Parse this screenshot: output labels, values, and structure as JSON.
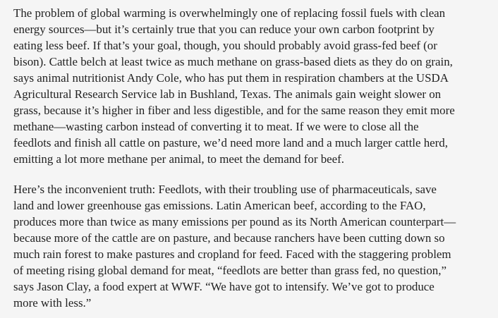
{
  "article": {
    "paragraphs": [
      {
        "lines": [
          "The problem of global warming is overwhelmingly one of replacing fossil fuels with clean",
          "energy sources—but it’s certainly true that you can reduce your own carbon footprint by",
          "eating less beef. If that’s your goal, though, you should probably avoid grass-fed beef (or",
          "bison). Cattle belch at least twice as much methane on grass-based diets as they do on grain,",
          "says animal nutritionist Andy Cole, who has put them in respiration chambers at the USDA",
          "Agricultural Research Service lab in Bushland, Texas. The animals gain weight slower on",
          "grass, because it’s higher in fiber and less digestible, and for the same reason they emit more",
          "methane—wasting carbon instead of converting it to meat. If we were to close all the",
          "feedlots and finish all cattle on pasture, we’d need more land and a much larger cattle herd,",
          "emitting a lot more methane per animal, to meet the demand for beef."
        ]
      },
      {
        "lines": [
          "Here’s the inconvenient truth: Feedlots, with their troubling use of pharmaceuticals, save",
          "land and lower greenhouse gas emissions. Latin American beef, according to the FAO,",
          "produces more than twice as many emissions per pound as its North American counterpart—",
          "because more of the cattle are on pasture, and because ranchers have been cutting down so",
          "much rain forest to make pastures and cropland for feed. Faced with the staggering problem",
          "of meeting rising global demand for meat, “feedlots are better than grass fed, no question,”",
          "says Jason Clay, a food expert at WWF. “We have got to intensify. We’ve got to produce",
          "more with less.”"
        ]
      }
    ]
  }
}
